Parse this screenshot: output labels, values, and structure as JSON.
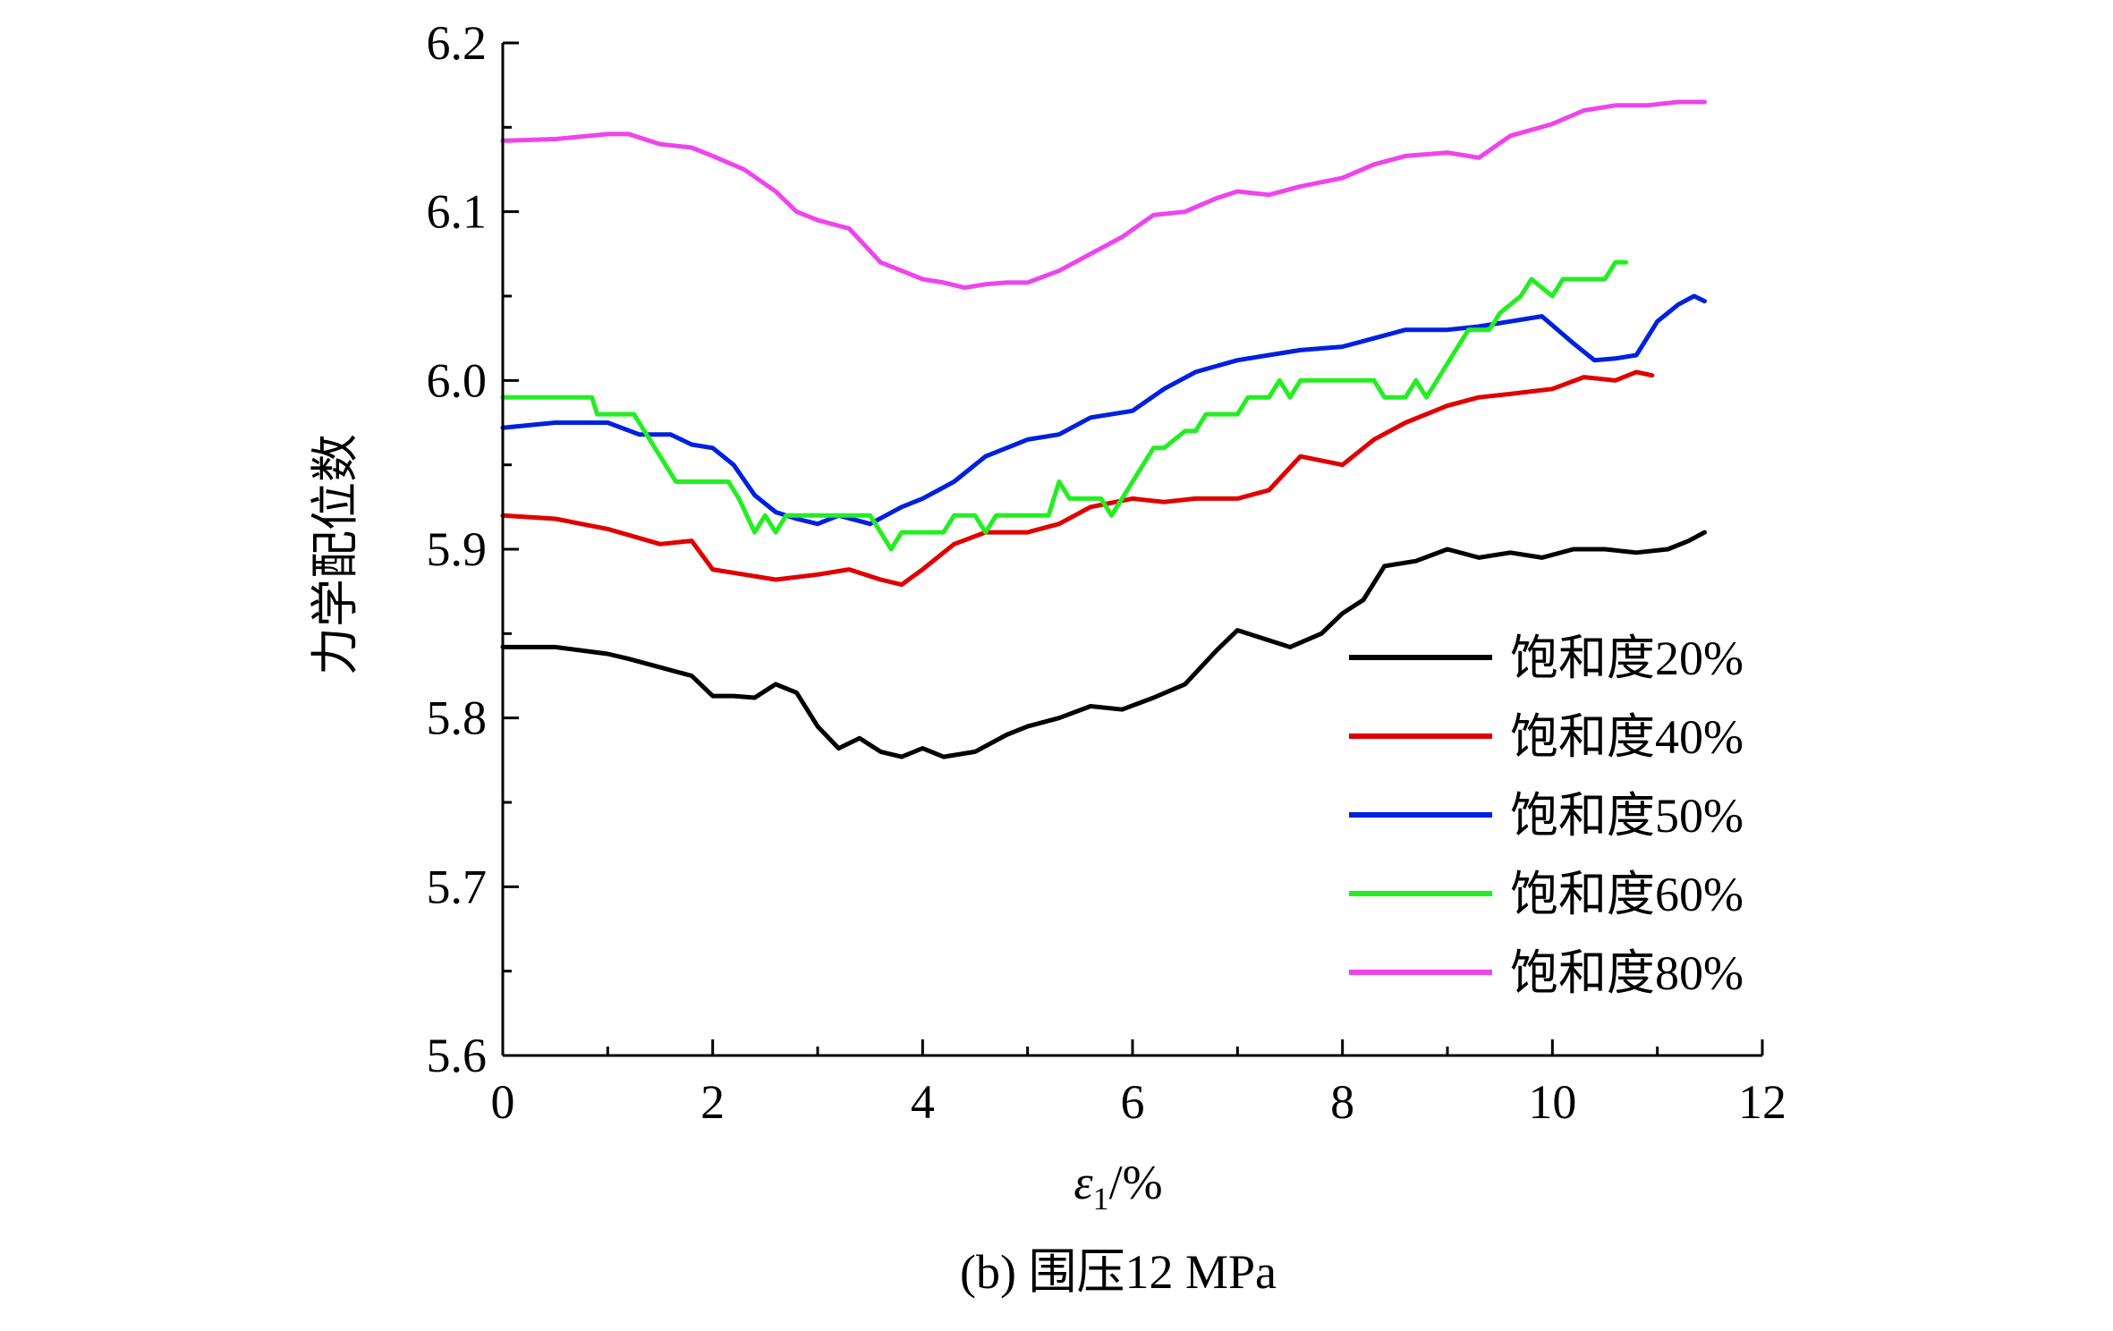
{
  "chart_data": {
    "type": "line",
    "caption": "(b) 围压12 MPa",
    "xlabel_symbol": "ε",
    "xlabel_subscript": "1",
    "xlabel_unit": "/%",
    "ylabel": "力学配位数",
    "xlim": [
      0,
      12
    ],
    "ylim": [
      5.6,
      6.2
    ],
    "x_ticks": [
      "0",
      "2",
      "4",
      "6",
      "8",
      "10",
      "12"
    ],
    "y_ticks": [
      "5.6",
      "5.7",
      "5.8",
      "5.9",
      "6.0",
      "6.1",
      "6.2"
    ],
    "grid": false,
    "legend_position": "lower-right",
    "series": [
      {
        "name": "饱和度20%",
        "color": "#000000",
        "x": [
          0,
          0.5,
          1.0,
          1.2,
          1.5,
          1.8,
          2.0,
          2.2,
          2.4,
          2.6,
          2.8,
          3.0,
          3.2,
          3.4,
          3.6,
          3.8,
          4.0,
          4.2,
          4.5,
          4.8,
          5.0,
          5.3,
          5.6,
          5.9,
          6.2,
          6.5,
          6.8,
          7.0,
          7.2,
          7.5,
          7.8,
          8.0,
          8.2,
          8.4,
          8.7,
          9.0,
          9.3,
          9.6,
          9.9,
          10.2,
          10.5,
          10.8,
          11.1,
          11.3,
          11.45
        ],
        "y": [
          5.842,
          5.842,
          5.838,
          5.835,
          5.83,
          5.825,
          5.813,
          5.813,
          5.812,
          5.82,
          5.815,
          5.795,
          5.782,
          5.788,
          5.78,
          5.777,
          5.782,
          5.777,
          5.78,
          5.79,
          5.795,
          5.8,
          5.807,
          5.805,
          5.812,
          5.82,
          5.84,
          5.852,
          5.848,
          5.842,
          5.85,
          5.862,
          5.87,
          5.89,
          5.893,
          5.9,
          5.895,
          5.898,
          5.895,
          5.9,
          5.9,
          5.898,
          5.9,
          5.905,
          5.91
        ]
      },
      {
        "name": "饱和度40%",
        "color": "#e00000",
        "x": [
          0,
          0.5,
          1.0,
          1.5,
          1.8,
          2.0,
          2.3,
          2.6,
          3.0,
          3.3,
          3.6,
          3.8,
          4.0,
          4.3,
          4.6,
          5.0,
          5.3,
          5.6,
          6.0,
          6.3,
          6.6,
          7.0,
          7.3,
          7.6,
          8.0,
          8.3,
          8.6,
          9.0,
          9.3,
          9.6,
          10.0,
          10.3,
          10.6,
          10.8,
          10.95
        ],
        "y": [
          5.92,
          5.918,
          5.912,
          5.903,
          5.905,
          5.888,
          5.885,
          5.882,
          5.885,
          5.888,
          5.882,
          5.879,
          5.888,
          5.903,
          5.91,
          5.91,
          5.915,
          5.925,
          5.93,
          5.928,
          5.93,
          5.93,
          5.935,
          5.955,
          5.95,
          5.965,
          5.975,
          5.985,
          5.99,
          5.992,
          5.995,
          6.002,
          6.0,
          6.005,
          6.003
        ]
      },
      {
        "name": "饱和度50%",
        "color": "#0020e0",
        "x": [
          0,
          0.5,
          1.0,
          1.3,
          1.6,
          1.8,
          2.0,
          2.2,
          2.4,
          2.6,
          2.8,
          3.0,
          3.2,
          3.5,
          3.8,
          4.0,
          4.3,
          4.6,
          5.0,
          5.3,
          5.6,
          6.0,
          6.3,
          6.6,
          7.0,
          7.3,
          7.6,
          8.0,
          8.3,
          8.6,
          9.0,
          9.3,
          9.6,
          9.9,
          10.2,
          10.4,
          10.6,
          10.8,
          11.0,
          11.2,
          11.35,
          11.45
        ],
        "y": [
          5.972,
          5.975,
          5.975,
          5.968,
          5.968,
          5.962,
          5.96,
          5.95,
          5.932,
          5.922,
          5.918,
          5.915,
          5.92,
          5.915,
          5.925,
          5.93,
          5.94,
          5.955,
          5.965,
          5.968,
          5.978,
          5.982,
          5.995,
          6.005,
          6.012,
          6.015,
          6.018,
          6.02,
          6.025,
          6.03,
          6.03,
          6.032,
          6.035,
          6.038,
          6.022,
          6.012,
          6.013,
          6.015,
          6.035,
          6.045,
          6.05,
          6.047
        ]
      },
      {
        "name": "饱和度60%",
        "color": "#22ee22",
        "x": [
          0,
          0.85,
          0.9,
          1.25,
          1.35,
          1.65,
          1.75,
          2.15,
          2.25,
          2.4,
          2.5,
          2.6,
          2.7,
          3.5,
          3.6,
          3.7,
          3.8,
          4.2,
          4.3,
          4.5,
          4.6,
          4.7,
          5.2,
          5.3,
          5.4,
          5.7,
          5.8,
          6.1,
          6.2,
          6.3,
          6.5,
          6.6,
          6.7,
          7.0,
          7.1,
          7.3,
          7.4,
          7.5,
          7.6,
          8.3,
          8.4,
          8.6,
          8.7,
          8.8,
          8.9,
          9.1,
          9.2,
          9.4,
          9.5,
          9.7,
          9.8,
          10.0,
          10.1,
          10.5,
          10.6,
          10.7
        ],
        "y": [
          5.99,
          5.99,
          5.98,
          5.98,
          5.97,
          5.94,
          5.94,
          5.94,
          5.93,
          5.91,
          5.92,
          5.91,
          5.92,
          5.92,
          5.91,
          5.9,
          5.91,
          5.91,
          5.92,
          5.92,
          5.91,
          5.92,
          5.92,
          5.94,
          5.93,
          5.93,
          5.92,
          5.95,
          5.96,
          5.96,
          5.97,
          5.97,
          5.98,
          5.98,
          5.99,
          5.99,
          6.0,
          5.99,
          6.0,
          6.0,
          5.99,
          5.99,
          6.0,
          5.99,
          6.0,
          6.02,
          6.03,
          6.03,
          6.04,
          6.05,
          6.06,
          6.05,
          6.06,
          6.06,
          6.07,
          6.07
        ]
      },
      {
        "name": "饱和度80%",
        "color": "#ee44ee",
        "x": [
          0,
          0.5,
          1.0,
          1.2,
          1.5,
          1.8,
          2.0,
          2.3,
          2.6,
          2.8,
          3.0,
          3.3,
          3.6,
          3.8,
          4.0,
          4.2,
          4.4,
          4.6,
          4.8,
          5.0,
          5.3,
          5.6,
          5.9,
          6.2,
          6.5,
          6.8,
          7.0,
          7.3,
          7.6,
          8.0,
          8.3,
          8.6,
          9.0,
          9.3,
          9.6,
          10.0,
          10.3,
          10.6,
          10.9,
          11.2,
          11.45
        ],
        "y": [
          6.142,
          6.143,
          6.146,
          6.146,
          6.14,
          6.138,
          6.133,
          6.125,
          6.112,
          6.1,
          6.095,
          6.09,
          6.07,
          6.065,
          6.06,
          6.058,
          6.055,
          6.057,
          6.058,
          6.058,
          6.065,
          6.075,
          6.085,
          6.098,
          6.1,
          6.108,
          6.112,
          6.11,
          6.115,
          6.12,
          6.128,
          6.133,
          6.135,
          6.132,
          6.145,
          6.152,
          6.16,
          6.163,
          6.163,
          6.165,
          6.165
        ]
      }
    ]
  }
}
